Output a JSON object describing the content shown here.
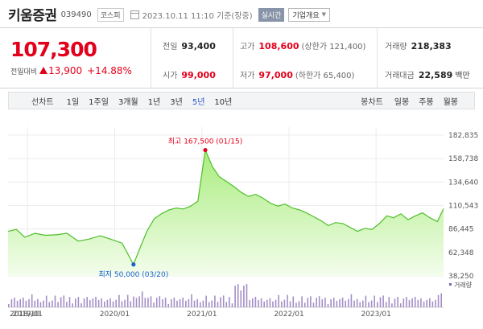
{
  "header": {
    "name": "키움증권",
    "code": "039490",
    "market": "코스피",
    "datetime": "2023.10.11 11:10 기준(장중)",
    "realtime": "실시간",
    "company_info": "기업개요"
  },
  "quote": {
    "price": "107,300",
    "change_label": "전일대비",
    "change": "13,900",
    "change_pct": "+14.88%",
    "prev_close_label": "전일",
    "prev_close": "93,400",
    "open_label": "시가",
    "open": "99,000",
    "high_label": "고가",
    "high": "108,600",
    "upper_limit": "(상한가 121,400)",
    "low_label": "저가",
    "low": "97,000",
    "lower_limit": "(하한가 65,400)",
    "volume_label": "거래량",
    "volume": "218,383",
    "amount_label": "거래대금",
    "amount": "22,589",
    "amount_unit": "백만"
  },
  "period_bar": {
    "line_label": "선차트",
    "items": [
      "1일",
      "1주일",
      "3개월",
      "1년",
      "3년",
      "5년",
      "10년"
    ],
    "active": "5년",
    "candle_label": "봉차트",
    "candle_items": [
      "일봉",
      "주봉",
      "월봉"
    ]
  },
  "colors": {
    "up": "#e3001b",
    "down": "#1a5fd0",
    "line": "#4fbf2b",
    "fill_top": "#a9ec7d",
    "fill_bottom": "#f3fdec",
    "volume": "#a48ec6"
  },
  "chart_data": {
    "type": "area",
    "x_start": "2018-10-11",
    "x_end": "2023-10-11",
    "ylim": [
      38250,
      182835
    ],
    "y_ticks": [
      38250,
      62348,
      86445,
      110543,
      134640,
      158738,
      182835
    ],
    "y_tick_labels": [
      "38,250",
      "62,348",
      "86,445",
      "110,543",
      "134,640",
      "158,738",
      "182,835"
    ],
    "x_tick_labels": [
      "2018/10",
      "2019/01",
      "2020/01",
      "2021/01",
      "2022/01",
      "2023/01"
    ],
    "x_tick_dates": [
      "2018-10-01",
      "2019-01-01",
      "2020-01-01",
      "2021-01-01",
      "2022-01-01",
      "2023-01-01"
    ],
    "series": [
      {
        "x": [
          "2018-10-11",
          "2018-11-15",
          "2018-12-20",
          "2019-02-01",
          "2019-03-15",
          "2019-05-01",
          "2019-06-15",
          "2019-08-01",
          "2019-09-15",
          "2019-11-01",
          "2019-12-15",
          "2020-02-01",
          "2020-03-20",
          "2020-04-15",
          "2020-05-15",
          "2020-06-15",
          "2020-07-15",
          "2020-08-15",
          "2020-09-15",
          "2020-10-15",
          "2020-11-15",
          "2020-12-15",
          "2021-01-15",
          "2021-02-15",
          "2021-03-15",
          "2021-04-15",
          "2021-05-15",
          "2021-06-15",
          "2021-07-15",
          "2021-08-15",
          "2021-09-15",
          "2021-10-15",
          "2021-11-15",
          "2021-12-15",
          "2022-01-15",
          "2022-02-15",
          "2022-03-15",
          "2022-04-15",
          "2022-05-15",
          "2022-06-15",
          "2022-07-15",
          "2022-08-15",
          "2022-09-15",
          "2022-10-15",
          "2022-11-15",
          "2022-12-15",
          "2023-01-15",
          "2023-02-15",
          "2023-03-15",
          "2023-04-15",
          "2023-05-15",
          "2023-06-15",
          "2023-07-15",
          "2023-08-15",
          "2023-09-15",
          "2023-10-11"
        ],
        "y": [
          84000,
          86000,
          78000,
          82000,
          80000,
          80500,
          82000,
          74000,
          76000,
          79500,
          76000,
          72000,
          50000,
          66000,
          84000,
          97000,
          102000,
          106000,
          108000,
          107000,
          110000,
          115000,
          167500,
          150000,
          140000,
          135000,
          130000,
          124000,
          120000,
          122000,
          118000,
          113000,
          110000,
          112000,
          108000,
          106000,
          103000,
          99000,
          95000,
          90000,
          93000,
          92000,
          88000,
          84000,
          87000,
          86000,
          92000,
          100000,
          98000,
          102000,
          96000,
          100000,
          103000,
          98000,
          94000,
          107300
        ]
      }
    ],
    "annotations": [
      {
        "label": "최고 167,500 (01/15)",
        "x": "2021-01-15",
        "y": 167500,
        "kind": "high"
      },
      {
        "label": "최저 50,000 (03/20)",
        "x": "2020-03-20",
        "y": 50000,
        "kind": "low"
      }
    ],
    "volume_label": "거래량",
    "grid": true,
    "legend": "none"
  }
}
